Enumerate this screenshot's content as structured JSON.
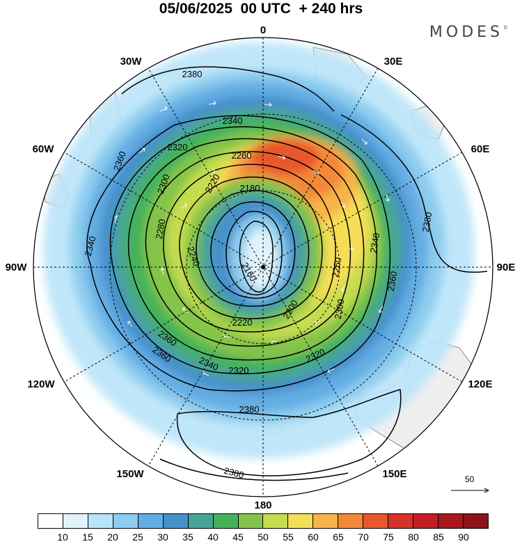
{
  "title": "05/06/2025  00 UTC  + 240 hrs",
  "brand": "MODES",
  "brand_mark": "©",
  "longitude_labels": [
    "0",
    "30E",
    "60E",
    "90E",
    "120E",
    "150E",
    "180",
    "150W",
    "120W",
    "90W",
    "60W",
    "30W"
  ],
  "contour_labels": [
    "2380",
    "2340",
    "2320",
    "2360",
    "2260",
    "2300",
    "2220",
    "2280",
    "2240",
    "2180",
    "2160",
    "2200",
    "2380",
    "2340",
    "2360",
    "2300",
    "2260",
    "2340",
    "2320",
    "2220",
    "2360",
    "2340",
    "2320",
    "2380",
    "2360",
    "2380"
  ],
  "vector_scale": "50",
  "colorbar": {
    "colors": [
      "#ffffff",
      "#e0f3fc",
      "#b9e4f8",
      "#8ecdef",
      "#63ade4",
      "#4690cc",
      "#48a595",
      "#45b25a",
      "#84c44a",
      "#c6dc4f",
      "#f5de57",
      "#f8b34a",
      "#f38839",
      "#e9582c",
      "#d73227",
      "#c11f24",
      "#a6171e",
      "#8c1418"
    ],
    "ticks": [
      "10",
      "15",
      "20",
      "25",
      "30",
      "35",
      "40",
      "45",
      "50",
      "55",
      "60",
      "65",
      "70",
      "75",
      "80",
      "85",
      "90"
    ]
  }
}
